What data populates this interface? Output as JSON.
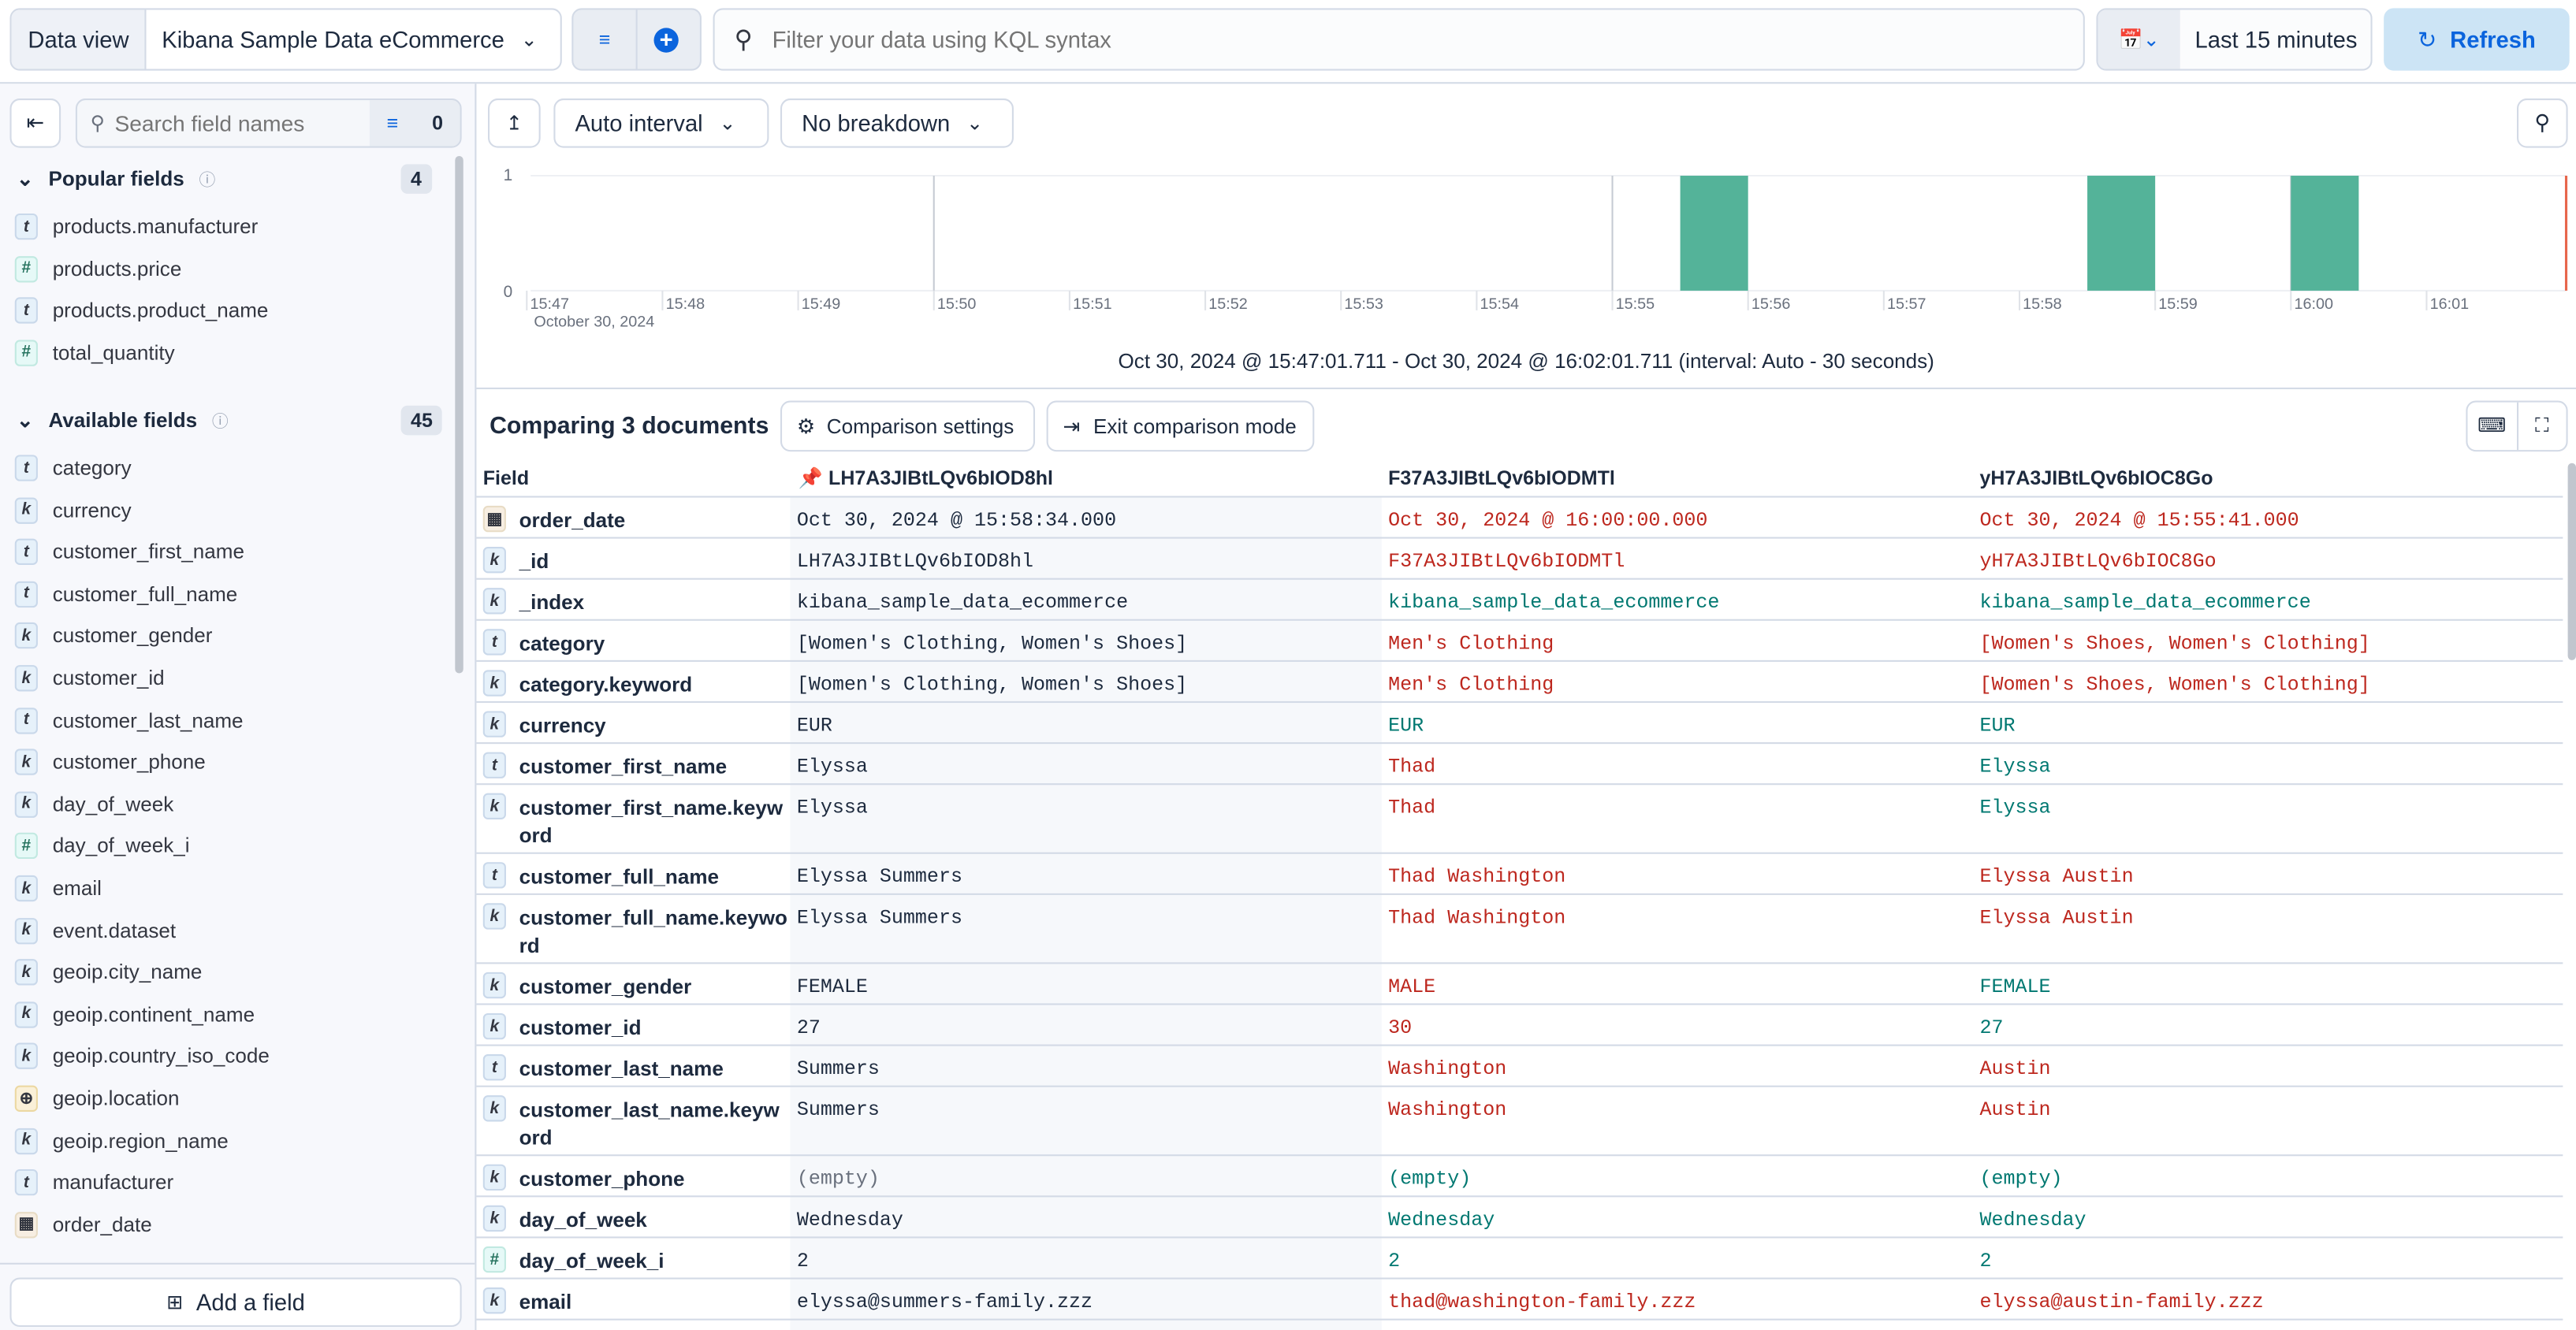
{
  "topbar": {
    "data_view_label": "Data view",
    "data_view_value": "Kibana Sample Data eCommerce",
    "query_placeholder": "Filter your data using KQL syntax",
    "time_range": "Last 15 minutes",
    "refresh_label": "Refresh"
  },
  "sidebar": {
    "search_placeholder": "Search field names",
    "filter_count": "0",
    "popular_title": "Popular fields",
    "popular_count": "4",
    "popular_fields": [
      {
        "name": "products.manufacturer",
        "type": "t"
      },
      {
        "name": "products.price",
        "type": "#"
      },
      {
        "name": "products.product_name",
        "type": "t"
      },
      {
        "name": "total_quantity",
        "type": "#"
      }
    ],
    "available_title": "Available fields",
    "available_count": "45",
    "available_fields": [
      {
        "name": "category",
        "type": "t"
      },
      {
        "name": "currency",
        "type": "k"
      },
      {
        "name": "customer_first_name",
        "type": "t"
      },
      {
        "name": "customer_full_name",
        "type": "t"
      },
      {
        "name": "customer_gender",
        "type": "k"
      },
      {
        "name": "customer_id",
        "type": "k"
      },
      {
        "name": "customer_last_name",
        "type": "t"
      },
      {
        "name": "customer_phone",
        "type": "k"
      },
      {
        "name": "day_of_week",
        "type": "k"
      },
      {
        "name": "day_of_week_i",
        "type": "#"
      },
      {
        "name": "email",
        "type": "k"
      },
      {
        "name": "event.dataset",
        "type": "k"
      },
      {
        "name": "geoip.city_name",
        "type": "k"
      },
      {
        "name": "geoip.continent_name",
        "type": "k"
      },
      {
        "name": "geoip.country_iso_code",
        "type": "k"
      },
      {
        "name": "geoip.location",
        "type": "geo"
      },
      {
        "name": "geoip.region_name",
        "type": "k"
      },
      {
        "name": "manufacturer",
        "type": "t"
      },
      {
        "name": "order_date",
        "type": "date"
      }
    ],
    "add_field_label": "Add a field"
  },
  "toolbar": {
    "interval_label": "Auto interval",
    "breakdown_label": "No breakdown"
  },
  "chart_data": {
    "type": "bar",
    "x_ticks": [
      "15:47",
      "15:48",
      "15:49",
      "15:50",
      "15:51",
      "15:52",
      "15:53",
      "15:54",
      "15:55",
      "15:56",
      "15:57",
      "15:58",
      "15:59",
      "16:00",
      "16:01"
    ],
    "x_sublabel": "October 30, 2024",
    "y_ticks": [
      "0",
      "1"
    ],
    "ylim": [
      0,
      1
    ],
    "xlim": [
      "15:47:01.711",
      "16:02:01.711"
    ],
    "bars": [
      {
        "start": "15:55:30",
        "end": "15:56:00",
        "value": 1
      },
      {
        "start": "15:58:30",
        "end": "15:59:00",
        "value": 1
      },
      {
        "start": "16:00:00",
        "end": "16:00:30",
        "value": 1
      }
    ],
    "bar_color": "#54b399",
    "caption": "Oct 30, 2024 @ 15:47:01.711 - Oct 30, 2024 @ 16:02:01.711 (interval: Auto - 30 seconds)"
  },
  "comparison": {
    "title": "Comparing 3 documents",
    "settings_label": "Comparison settings",
    "exit_label": "Exit comparison mode",
    "field_header": "Field",
    "doc_headers": [
      "LH7A3JIBtLQv6bIOD8hl",
      "F37A3JIBtLQv6bIODMTl",
      "yH7A3JIBtLQv6bIOC8Go"
    ],
    "colors": {
      "diff": "#bd271e",
      "same": "#007871"
    },
    "rows": [
      {
        "field": "order_date",
        "type": "date",
        "values": [
          "Oct 30, 2024 @ 15:58:34.000",
          "Oct 30, 2024 @ 16:00:00.000",
          "Oct 30, 2024 @ 15:55:41.000"
        ],
        "diff": [
          true,
          true
        ]
      },
      {
        "field": "_id",
        "type": "k",
        "values": [
          "LH7A3JIBtLQv6bIOD8hl",
          "F37A3JIBtLQv6bIODMTl",
          "yH7A3JIBtLQv6bIOC8Go"
        ],
        "diff": [
          true,
          true
        ]
      },
      {
        "field": "_index",
        "type": "k",
        "values": [
          "kibana_sample_data_ecommerce",
          "kibana_sample_data_ecommerce",
          "kibana_sample_data_ecommerce"
        ],
        "diff": [
          false,
          false
        ]
      },
      {
        "field": "category",
        "type": "t",
        "values": [
          "[Women's Clothing, Women's Shoes]",
          "Men's Clothing",
          "[Women's Shoes, Women's Clothing]"
        ],
        "diff": [
          true,
          true
        ]
      },
      {
        "field": "category.keyword",
        "type": "k",
        "values": [
          "[Women's Clothing, Women's Shoes]",
          "Men's Clothing",
          "[Women's Shoes, Women's Clothing]"
        ],
        "diff": [
          true,
          true
        ]
      },
      {
        "field": "currency",
        "type": "k",
        "values": [
          "EUR",
          "EUR",
          "EUR"
        ],
        "diff": [
          false,
          false
        ]
      },
      {
        "field": "customer_first_name",
        "type": "t",
        "values": [
          "Elyssa",
          "Thad",
          "Elyssa"
        ],
        "diff": [
          true,
          false
        ]
      },
      {
        "field": "customer_first_name.keyword",
        "type": "k",
        "values": [
          "Elyssa",
          "Thad",
          "Elyssa"
        ],
        "diff": [
          true,
          false
        ]
      },
      {
        "field": "customer_full_name",
        "type": "t",
        "values": [
          "Elyssa Summers",
          "Thad Washington",
          "Elyssa Austin"
        ],
        "diff": [
          true,
          true
        ]
      },
      {
        "field": "customer_full_name.keyword",
        "type": "k",
        "values": [
          "Elyssa Summers",
          "Thad Washington",
          "Elyssa Austin"
        ],
        "diff": [
          true,
          true
        ]
      },
      {
        "field": "customer_gender",
        "type": "k",
        "values": [
          "FEMALE",
          "MALE",
          "FEMALE"
        ],
        "diff": [
          true,
          false
        ]
      },
      {
        "field": "customer_id",
        "type": "k",
        "values": [
          "27",
          "30",
          "27"
        ],
        "diff": [
          true,
          false
        ]
      },
      {
        "field": "customer_last_name",
        "type": "t",
        "values": [
          "Summers",
          "Washington",
          "Austin"
        ],
        "diff": [
          true,
          true
        ]
      },
      {
        "field": "customer_last_name.keyword",
        "type": "k",
        "values": [
          "Summers",
          "Washington",
          "Austin"
        ],
        "diff": [
          true,
          true
        ]
      },
      {
        "field": "customer_phone",
        "type": "k",
        "values": [
          "(empty)",
          "(empty)",
          "(empty)"
        ],
        "diff": [
          false,
          false
        ]
      },
      {
        "field": "day_of_week",
        "type": "k",
        "values": [
          "Wednesday",
          "Wednesday",
          "Wednesday"
        ],
        "diff": [
          false,
          false
        ]
      },
      {
        "field": "day_of_week_i",
        "type": "#",
        "values": [
          "2",
          "2",
          "2"
        ],
        "diff": [
          false,
          false
        ]
      },
      {
        "field": "email",
        "type": "k",
        "values": [
          "elyssa@summers-family.zzz",
          "thad@washington-family.zzz",
          "elyssa@austin-family.zzz"
        ],
        "diff": [
          true,
          true
        ]
      }
    ]
  }
}
